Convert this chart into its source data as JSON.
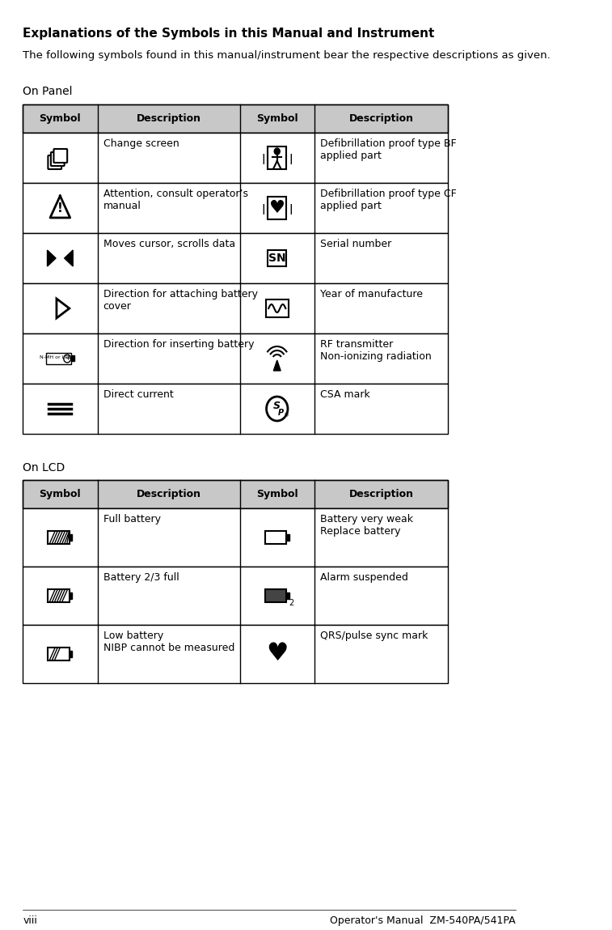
{
  "title": "Explanations of the Symbols in this Manual and Instrument",
  "subtitle": "The following symbols found in this manual/instrument bear the respective descriptions as given.",
  "section1_label": "On Panel",
  "section2_label": "On LCD",
  "footer_left": "viii",
  "footer_right": "Operator's Manual  ZM-540PA/541PA",
  "panel_headers": [
    "Symbol",
    "Description",
    "Symbol",
    "Description"
  ],
  "lcd_headers": [
    "Symbol",
    "Description",
    "Symbol",
    "Description"
  ],
  "panel_rows": [
    [
      "change_screen",
      "Change screen",
      "defib_bf",
      "Defibrillation proof type BF\napplied part"
    ],
    [
      "attention",
      "Attention, consult operator’s\nmanual",
      "defib_cf",
      "Defibrillation proof type CF\napplied part"
    ],
    [
      "cursor",
      "Moves cursor, scrolls data",
      "SN",
      "Serial number"
    ],
    [
      "battery_cover",
      "Direction for attaching battery\ncover",
      "year_manuf",
      "Year of manufacture"
    ],
    [
      "insert_battery",
      "Direction for inserting battery",
      "rf_transmitter",
      "RF transmitter\nNon-ionizing radiation"
    ],
    [
      "direct_current",
      "Direct current",
      "csa_mark",
      "CSA mark"
    ]
  ],
  "lcd_rows": [
    [
      "battery_full",
      "Full battery",
      "battery_weak",
      "Battery very weak\nReplace battery"
    ],
    [
      "battery_23",
      "Battery 2/3 full",
      "alarm_suspended",
      "Alarm suspended"
    ],
    [
      "battery_low",
      "Low battery\nNIBP cannot be measured",
      "qrs_pulse",
      "QRS/pulse sync mark"
    ]
  ],
  "background_color": "#ffffff",
  "header_bg": "#c8c8c8",
  "text_color": "#000000",
  "title_fontsize": 11,
  "body_fontsize": 9,
  "header_fontsize": 9
}
